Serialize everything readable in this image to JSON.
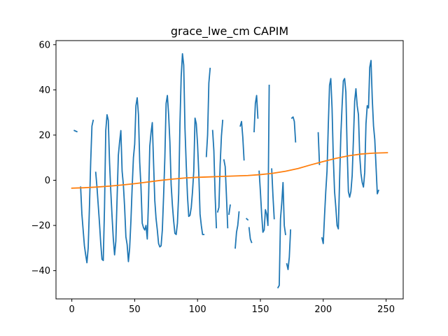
{
  "chart_data": {
    "type": "line",
    "title": "grace_lwe_cm CAPIM",
    "xlabel": "",
    "ylabel": "",
    "xlim": [
      -12.6,
      263.6
    ],
    "ylim": [
      -52.5,
      61.8
    ],
    "xticks": [
      0,
      50,
      100,
      150,
      200,
      250
    ],
    "yticks": [
      -40,
      -20,
      0,
      20,
      40,
      60
    ],
    "grid": false,
    "legend": null,
    "series": [
      {
        "color": "#1f77b4",
        "segments": [
          [
            [
              2,
              22
            ],
            [
              4,
              21.5
            ]
          ],
          [
            [
              7,
              -3
            ],
            [
              8,
              -15
            ],
            [
              9,
              -22
            ],
            [
              10,
              -29
            ],
            [
              11,
              -33
            ],
            [
              12,
              -36.5
            ],
            [
              13,
              -30
            ],
            [
              14,
              -12
            ],
            [
              15,
              8
            ],
            [
              16,
              24
            ],
            [
              17,
              26.5
            ]
          ],
          [
            [
              19,
              3.5
            ],
            [
              20,
              -3
            ],
            [
              21,
              -11
            ],
            [
              22,
              -19
            ],
            [
              23,
              -28
            ],
            [
              24,
              -35
            ],
            [
              25,
              -35.5
            ],
            [
              26,
              -12
            ],
            [
              27,
              22
            ],
            [
              28,
              29
            ],
            [
              29,
              26.5
            ],
            [
              30,
              8
            ],
            [
              31,
              -5
            ],
            [
              32,
              -16
            ],
            [
              33,
              -26
            ],
            [
              34,
              -33
            ],
            [
              35,
              -27
            ],
            [
              36,
              -8
            ],
            [
              37,
              11
            ],
            [
              38,
              17
            ],
            [
              39,
              22
            ],
            [
              40,
              4
            ],
            [
              41,
              -2
            ],
            [
              42,
              -12
            ],
            [
              43,
              -25
            ],
            [
              44,
              -28.5
            ],
            [
              45,
              -36
            ],
            [
              46,
              -30
            ],
            [
              47,
              -18
            ],
            [
              48,
              -3
            ],
            [
              49,
              10
            ],
            [
              50,
              16
            ],
            [
              51,
              33
            ],
            [
              52,
              36.5
            ],
            [
              53,
              29
            ],
            [
              54,
              8
            ],
            [
              55,
              -3
            ],
            [
              56,
              -19
            ],
            [
              57,
              -21
            ],
            [
              58,
              -22
            ],
            [
              59,
              -20
            ],
            [
              60,
              -26
            ],
            [
              61,
              -9
            ],
            [
              62,
              15
            ],
            [
              63,
              21
            ],
            [
              64,
              25.5
            ],
            [
              65,
              8
            ],
            [
              66,
              -9
            ],
            [
              67,
              -17
            ],
            [
              68,
              -22
            ],
            [
              69,
              -28
            ],
            [
              70,
              -29.5
            ],
            [
              71,
              -29
            ],
            [
              72,
              -22
            ],
            [
              73,
              -7
            ],
            [
              74,
              10
            ],
            [
              75,
              34
            ],
            [
              76,
              37.5
            ],
            [
              77,
              29
            ],
            [
              78,
              17
            ],
            [
              79,
              -2
            ],
            [
              80,
              -11
            ],
            [
              81,
              -18
            ],
            [
              82,
              -23.5
            ],
            [
              83,
              -24
            ],
            [
              84,
              -19
            ],
            [
              85,
              -6
            ],
            [
              86,
              25
            ],
            [
              87,
              46
            ],
            [
              88,
              56
            ],
            [
              89,
              51
            ],
            [
              90,
              23
            ],
            [
              91,
              7
            ],
            [
              92,
              -7
            ],
            [
              93,
              -16
            ],
            [
              94,
              -15.5
            ],
            [
              95,
              -12
            ],
            [
              96,
              -5
            ],
            [
              97,
              4
            ],
            [
              98,
              27.5
            ],
            [
              99,
              25
            ],
            [
              100,
              16
            ],
            [
              101,
              3
            ],
            [
              102,
              -15
            ],
            [
              103,
              -20
            ],
            [
              104,
              -24
            ],
            [
              105,
              -24
            ]
          ],
          [
            [
              107,
              10.5
            ],
            [
              108,
              20
            ],
            [
              109,
              43
            ],
            [
              110,
              49.5
            ]
          ],
          [
            [
              112,
              22
            ],
            [
              113,
              13
            ],
            [
              114,
              -7
            ],
            [
              115,
              -21
            ]
          ],
          [
            [
              116,
              -14
            ],
            [
              117,
              -12
            ],
            [
              118,
              7
            ],
            [
              119,
              19.5
            ],
            [
              120,
              26.5
            ]
          ],
          [
            [
              121,
              9
            ],
            [
              122,
              6
            ],
            [
              123,
              -7
            ],
            [
              124,
              -21
            ]
          ],
          [
            [
              125,
              -15
            ],
            [
              126,
              -11
            ]
          ],
          [
            [
              130,
              -30
            ],
            [
              131,
              -23
            ],
            [
              132,
              -20
            ],
            [
              133,
              -14
            ]
          ],
          [
            [
              134,
              24
            ],
            [
              135,
              26
            ],
            [
              136,
              19
            ],
            [
              137,
              9
            ]
          ],
          [
            [
              139,
              -17
            ],
            [
              140,
              -17.5
            ]
          ],
          [
            [
              141,
              -21
            ],
            [
              142,
              -26
            ],
            [
              143,
              -27.5
            ]
          ],
          [
            [
              145,
              21.5
            ],
            [
              146,
              34
            ],
            [
              147,
              37.5
            ],
            [
              148,
              27.5
            ]
          ],
          [
            [
              149,
              4
            ],
            [
              150,
              -5
            ],
            [
              151,
              -15
            ],
            [
              152,
              -23
            ],
            [
              153,
              -22
            ],
            [
              154,
              -13
            ],
            [
              155,
              -15
            ],
            [
              156,
              -20
            ],
            [
              157,
              42
            ]
          ],
          [
            [
              159,
              5
            ],
            [
              160,
              -7
            ],
            [
              161,
              -17
            ]
          ],
          [
            [
              164,
              -47.5
            ],
            [
              165,
              -46.5
            ],
            [
              166,
              -17
            ],
            [
              167,
              -10
            ],
            [
              168,
              -1
            ],
            [
              169,
              -20
            ],
            [
              170,
              -24
            ]
          ],
          [
            [
              171,
              -37
            ],
            [
              172,
              -39.5
            ],
            [
              173,
              -34
            ],
            [
              174,
              -22
            ]
          ],
          [
            [
              175,
              27.5
            ],
            [
              176,
              28
            ],
            [
              177,
              26
            ],
            [
              178,
              17
            ]
          ],
          [
            [
              196,
              21
            ],
            [
              197,
              7
            ]
          ],
          [
            [
              199,
              -25.5
            ],
            [
              200,
              -28
            ],
            [
              201,
              -16
            ],
            [
              202,
              -5
            ],
            [
              203,
              4
            ],
            [
              204,
              24
            ],
            [
              205,
              42
            ],
            [
              206,
              45
            ],
            [
              207,
              32
            ],
            [
              208,
              10
            ],
            [
              209,
              -5
            ],
            [
              210,
              -12
            ],
            [
              211,
              -20
            ],
            [
              212,
              -21.5
            ],
            [
              213,
              0
            ],
            [
              214,
              20
            ],
            [
              215,
              33
            ],
            [
              216,
              44
            ],
            [
              217,
              45
            ],
            [
              218,
              39
            ],
            [
              219,
              14
            ],
            [
              220,
              -5
            ],
            [
              221,
              -7.5
            ],
            [
              222,
              -5
            ],
            [
              223,
              2
            ],
            [
              224,
              18
            ],
            [
              225,
              35
            ],
            [
              226,
              40.5
            ],
            [
              227,
              33
            ],
            [
              228,
              29
            ],
            [
              229,
              11
            ],
            [
              230,
              3
            ],
            [
              231,
              -1
            ],
            [
              232,
              -3
            ],
            [
              233,
              3.5
            ],
            [
              234,
              25
            ],
            [
              235,
              33
            ],
            [
              236,
              32
            ],
            [
              237,
              50
            ],
            [
              238,
              53
            ],
            [
              239,
              36
            ],
            [
              240,
              24
            ],
            [
              241,
              18
            ],
            [
              242,
              6
            ],
            [
              243,
              -6
            ],
            [
              244,
              -4.5
            ]
          ]
        ]
      },
      {
        "color": "#ff7f0e",
        "segments": [
          [
            [
              0,
              -3.5
            ],
            [
              10,
              -3.3
            ],
            [
              20,
              -3.0
            ],
            [
              30,
              -2.6
            ],
            [
              40,
              -2.1
            ],
            [
              50,
              -1.5
            ],
            [
              60,
              -0.8
            ],
            [
              70,
              -0.1
            ],
            [
              80,
              0.5
            ],
            [
              90,
              1.0
            ],
            [
              100,
              1.3
            ],
            [
              110,
              1.5
            ],
            [
              120,
              1.7
            ],
            [
              130,
              1.9
            ],
            [
              140,
              2.1
            ],
            [
              150,
              2.5
            ],
            [
              160,
              3.1
            ],
            [
              170,
              4.0
            ],
            [
              180,
              5.2
            ],
            [
              190,
              6.8
            ],
            [
              200,
              8.3
            ],
            [
              210,
              9.7
            ],
            [
              220,
              10.8
            ],
            [
              230,
              11.6
            ],
            [
              240,
              12.0
            ],
            [
              251,
              12.2
            ]
          ]
        ]
      }
    ]
  }
}
